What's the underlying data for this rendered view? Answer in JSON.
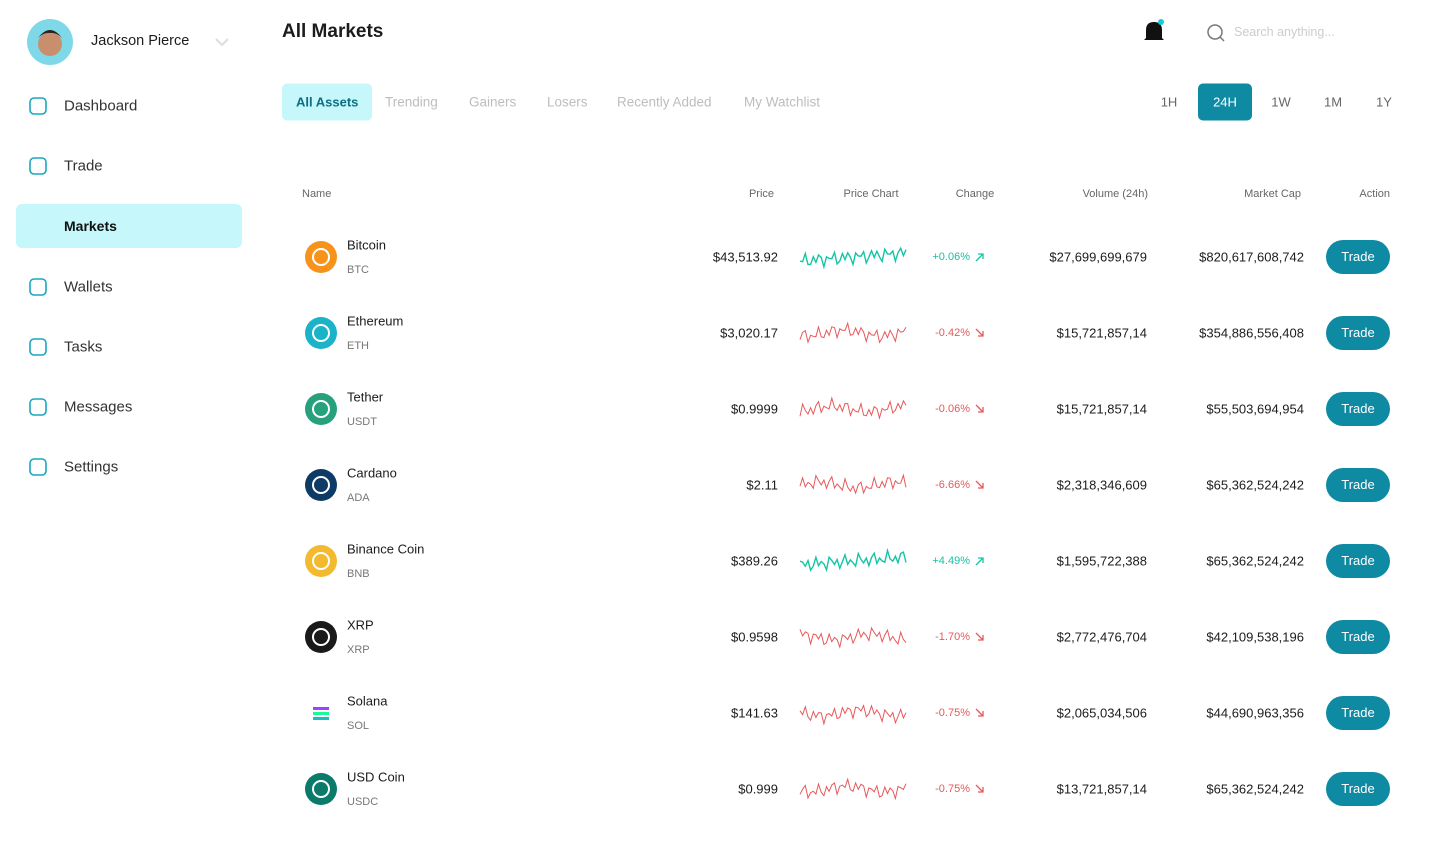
{
  "user": {
    "name": "Jackson Pierce"
  },
  "nav": {
    "items": [
      "Dashboard",
      "Trade",
      "Markets",
      "Wallets",
      "Tasks",
      "Messages",
      "Settings"
    ],
    "active": 2
  },
  "header": {
    "title": "All Markets",
    "search_placeholder": "Search anything..."
  },
  "tabs": {
    "items": [
      "All Assets",
      "Trending",
      "Gainers",
      "Losers",
      "Recently Added",
      "My Watchlist"
    ],
    "active": 0
  },
  "periods": {
    "items": [
      "1H",
      "24H",
      "1W",
      "1M",
      "1Y"
    ],
    "active": 1
  },
  "table": {
    "columns": [
      "Name",
      "Price",
      "Price Chart",
      "Change",
      "Volume (24h)",
      "Market Cap",
      "Action"
    ],
    "action_label": "Trade",
    "rows": [
      {
        "name": "Bitcoin",
        "symbol": "BTC",
        "price": "$43,513.92",
        "change": "+0.06%",
        "volume": "$27,699,699,679",
        "market_cap": "$820,617,608,742"
      },
      {
        "name": "Ethereum",
        "symbol": "ETH",
        "price": "$3,020.17",
        "change": "-0.42%",
        "volume": "$15,721,857,14",
        "market_cap": "$354,886,556,408"
      },
      {
        "name": "Tether",
        "symbol": "USDT",
        "price": "$0.9999",
        "change": "-0.06%",
        "volume": "$15,721,857,14",
        "market_cap": "$55,503,694,954"
      },
      {
        "name": "Cardano",
        "symbol": "ADA",
        "price": "$2.11",
        "change": "-6.66%",
        "volume": "$2,318,346,609",
        "market_cap": "$65,362,524,242"
      },
      {
        "name": "Binance Coin",
        "symbol": "BNB",
        "price": "$389.26",
        "change": "+4.49%",
        "volume": "$1,595,722,388",
        "market_cap": "$65,362,524,242"
      },
      {
        "name": "XRP",
        "symbol": "XRP",
        "price": "$0.9598",
        "change": "-1.70%",
        "volume": "$2,772,476,704",
        "market_cap": "$42,109,538,196"
      },
      {
        "name": "Solana",
        "symbol": "SOL",
        "price": "$141.63",
        "change": "-0.75%",
        "volume": "$2,065,034,506",
        "market_cap": "$44,690,963,356"
      },
      {
        "name": "USD Coin",
        "symbol": "USDC",
        "price": "$0.999",
        "change": "-0.75%",
        "volume": "$13,721,857,14",
        "market_cap": "$65,362,524,242"
      }
    ]
  }
}
